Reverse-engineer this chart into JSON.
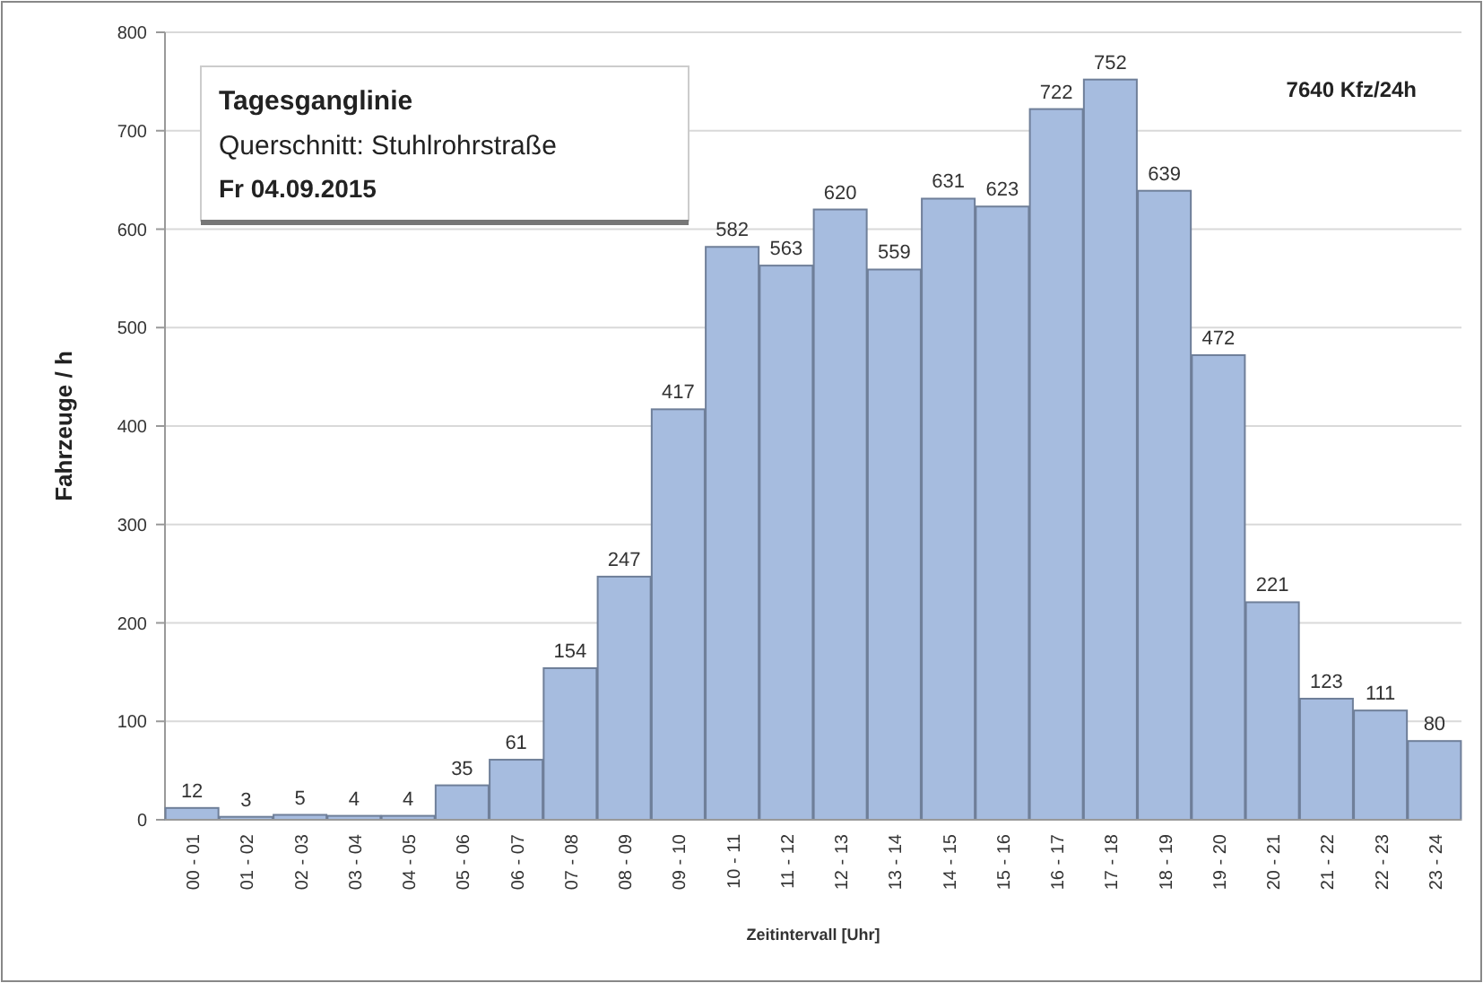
{
  "chart_data": {
    "type": "bar",
    "title": "Tagesganglinie",
    "subtitle": "Querschnitt: Stuhlrohrstraße",
    "annotations": [
      "Fr 04.09.2015",
      "7640 Kfz/24h"
    ],
    "xlabel": "Zeitintervall [Uhr]",
    "ylabel": "Fahrzeuge / h",
    "categories": [
      "00 - 01",
      "01 - 02",
      "02 - 03",
      "03 - 04",
      "04 - 05",
      "05 - 06",
      "06 - 07",
      "07 - 08",
      "08 - 09",
      "09 - 10",
      "10 - 11",
      "11 - 12",
      "12 - 13",
      "13 - 14",
      "14 - 15",
      "15 - 16",
      "16 - 17",
      "17 - 18",
      "18 - 19",
      "19 - 20",
      "20 - 21",
      "21 - 22",
      "22 - 23",
      "23 - 24"
    ],
    "values": [
      12,
      3,
      5,
      4,
      4,
      35,
      61,
      154,
      247,
      417,
      582,
      563,
      620,
      559,
      631,
      623,
      722,
      752,
      639,
      472,
      221,
      123,
      111,
      80
    ],
    "color": "#a6bcdf",
    "ylim": [
      0,
      800
    ],
    "yticks": [
      0,
      100,
      200,
      300,
      400,
      500,
      600,
      700,
      800
    ],
    "grid": "y",
    "data_labels": true
  }
}
